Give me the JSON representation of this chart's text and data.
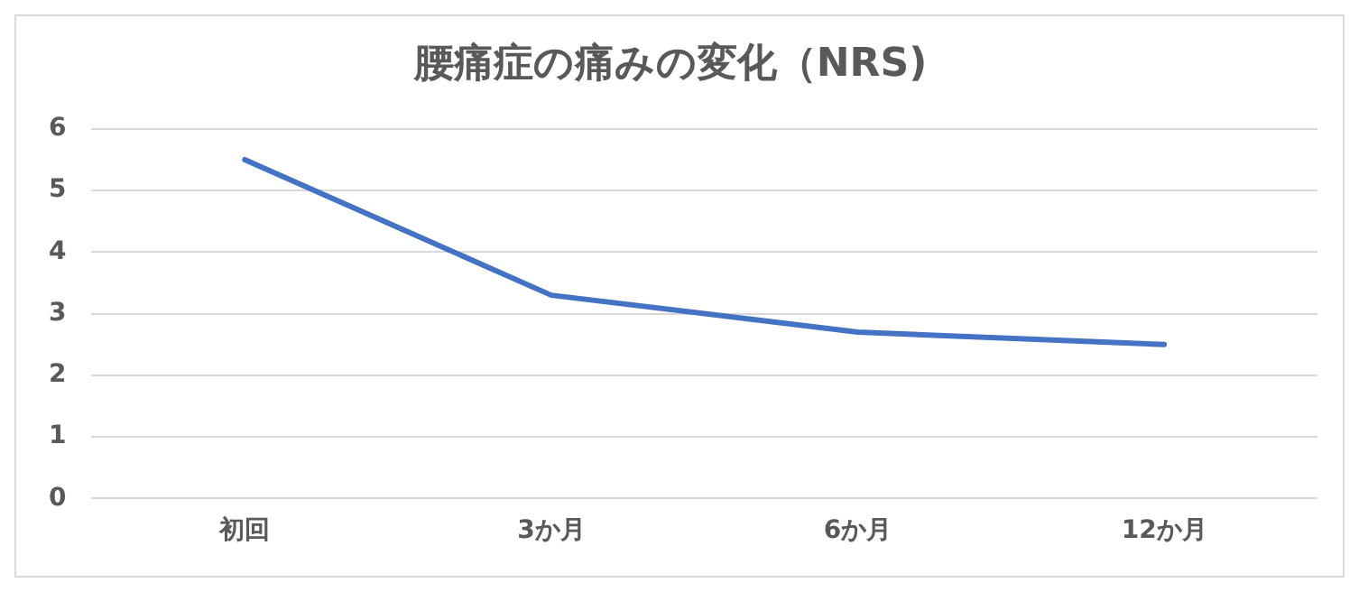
{
  "chart_data": {
    "type": "line",
    "title": "腰痛症の痛みの変化（NRS)",
    "categories": [
      "初回",
      "3か月",
      "6か月",
      "12か月"
    ],
    "series": [
      {
        "color": "#4472c4",
        "values": [
          5.5,
          3.3,
          2.7,
          2.5
        ]
      }
    ],
    "ylim": [
      0,
      6
    ],
    "yticks": [
      0,
      1,
      2,
      3,
      4,
      5,
      6
    ],
    "grid": "y",
    "legend": false,
    "marker": "none",
    "line_style": "solid"
  }
}
